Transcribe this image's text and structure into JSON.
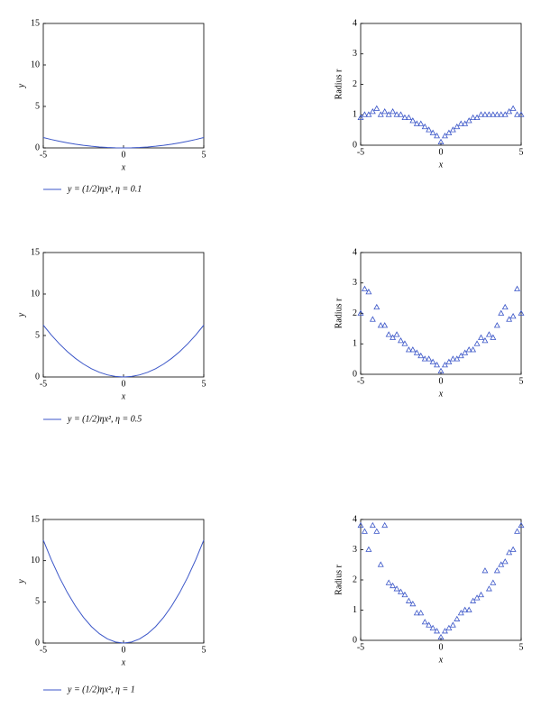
{
  "chart_data": [
    {
      "type": "line",
      "xlabel": "x",
      "ylabel": "y",
      "xlim": [
        -5,
        5
      ],
      "ylim": [
        0,
        15
      ],
      "xticks": [
        -5,
        0,
        5
      ],
      "yticks": [
        0,
        5,
        10,
        15
      ],
      "x": [
        -5,
        -4.5,
        -4,
        -3.5,
        -3,
        -2.5,
        -2,
        -1.5,
        -1,
        -0.5,
        0,
        0.5,
        1,
        1.5,
        2,
        2.5,
        3,
        3.5,
        4,
        4.5,
        5
      ],
      "series": [
        {
          "name": "y = (1/2)ηx², η = 0.1",
          "color": "#3b56c8",
          "values": [
            1.25,
            1.0125,
            0.8,
            0.6125,
            0.45,
            0.3125,
            0.2,
            0.1125,
            0.05,
            0.0125,
            0,
            0.0125,
            0.05,
            0.1125,
            0.2,
            0.3125,
            0.45,
            0.6125,
            0.8,
            1.0125,
            1.25
          ]
        }
      ]
    },
    {
      "type": "scatter",
      "xlabel": "x",
      "ylabel": "Radius r",
      "xlim": [
        -5,
        5
      ],
      "ylim": [
        0,
        4
      ],
      "xticks": [
        -5,
        0,
        5
      ],
      "yticks": [
        0,
        1,
        2,
        3,
        4
      ],
      "color": "#3b56c8",
      "marker": "triangle",
      "x": [
        -5,
        -4.75,
        -4.5,
        -4.25,
        -4,
        -3.75,
        -3.5,
        -3.25,
        -3,
        -2.75,
        -2.5,
        -2.25,
        -2,
        -1.75,
        -1.5,
        -1.25,
        -1,
        -0.75,
        -0.5,
        -0.25,
        0,
        0.25,
        0.5,
        0.75,
        1,
        1.25,
        1.5,
        1.75,
        2,
        2.25,
        2.5,
        2.75,
        3,
        3.25,
        3.5,
        3.75,
        4,
        4.25,
        4.5,
        4.75,
        5
      ],
      "values": [
        0.9,
        1.0,
        1.0,
        1.1,
        1.2,
        1.0,
        1.1,
        1.0,
        1.1,
        1.0,
        1.0,
        0.9,
        0.9,
        0.8,
        0.7,
        0.7,
        0.6,
        0.5,
        0.4,
        0.3,
        0.1,
        0.3,
        0.4,
        0.5,
        0.6,
        0.7,
        0.7,
        0.8,
        0.9,
        0.9,
        1.0,
        1.0,
        1.0,
        1.0,
        1.0,
        1.0,
        1.0,
        1.1,
        1.2,
        1.0,
        1.0
      ]
    },
    {
      "type": "line",
      "xlabel": "x",
      "ylabel": "y",
      "xlim": [
        -5,
        5
      ],
      "ylim": [
        0,
        15
      ],
      "xticks": [
        -5,
        0,
        5
      ],
      "yticks": [
        0,
        5,
        10,
        15
      ],
      "x": [
        -5,
        -4.5,
        -4,
        -3.5,
        -3,
        -2.5,
        -2,
        -1.5,
        -1,
        -0.5,
        0,
        0.5,
        1,
        1.5,
        2,
        2.5,
        3,
        3.5,
        4,
        4.5,
        5
      ],
      "series": [
        {
          "name": "y = (1/2)ηx², η = 0.5",
          "color": "#3b56c8",
          "values": [
            6.25,
            5.0625,
            4,
            3.0625,
            2.25,
            1.5625,
            1,
            0.5625,
            0.25,
            0.0625,
            0,
            0.0625,
            0.25,
            0.5625,
            1,
            1.5625,
            2.25,
            3.0625,
            4,
            5.0625,
            6.25
          ]
        }
      ]
    },
    {
      "type": "scatter",
      "xlabel": "x",
      "ylabel": "Radius r",
      "xlim": [
        -5,
        5
      ],
      "ylim": [
        0,
        4
      ],
      "xticks": [
        -5,
        0,
        5
      ],
      "yticks": [
        0,
        1,
        2,
        3,
        4
      ],
      "color": "#3b56c8",
      "marker": "triangle",
      "x": [
        -5,
        -4.75,
        -4.5,
        -4.25,
        -4,
        -3.75,
        -3.5,
        -3.25,
        -3,
        -2.75,
        -2.5,
        -2.25,
        -2,
        -1.75,
        -1.5,
        -1.25,
        -1,
        -0.75,
        -0.5,
        -0.25,
        0,
        0.25,
        0.5,
        0.75,
        1,
        1.25,
        1.5,
        1.75,
        2,
        2.25,
        2.5,
        2.75,
        3,
        3.25,
        3.5,
        3.75,
        4,
        4.25,
        4.5,
        4.75,
        5
      ],
      "values": [
        2.0,
        2.8,
        2.7,
        1.8,
        2.2,
        1.6,
        1.6,
        1.3,
        1.2,
        1.3,
        1.1,
        1.0,
        0.8,
        0.8,
        0.7,
        0.6,
        0.5,
        0.5,
        0.4,
        0.3,
        0.1,
        0.3,
        0.4,
        0.5,
        0.5,
        0.6,
        0.7,
        0.8,
        0.8,
        1.0,
        1.2,
        1.1,
        1.3,
        1.2,
        1.6,
        2.0,
        2.2,
        1.8,
        1.9,
        2.8,
        2.0
      ]
    },
    {
      "type": "line",
      "xlabel": "x",
      "ylabel": "y",
      "xlim": [
        -5,
        5
      ],
      "ylim": [
        0,
        15
      ],
      "xticks": [
        -5,
        0,
        5
      ],
      "yticks": [
        0,
        5,
        10,
        15
      ],
      "x": [
        -5,
        -4.5,
        -4,
        -3.5,
        -3,
        -2.5,
        -2,
        -1.5,
        -1,
        -0.5,
        0,
        0.5,
        1,
        1.5,
        2,
        2.5,
        3,
        3.5,
        4,
        4.5,
        5
      ],
      "series": [
        {
          "name": "y = (1/2)ηx², η = 1",
          "color": "#3b56c8",
          "values": [
            12.5,
            10.125,
            8,
            6.125,
            4.5,
            3.125,
            2,
            1.125,
            0.5,
            0.125,
            0,
            0.125,
            0.5,
            1.125,
            2,
            3.125,
            4.5,
            6.125,
            8,
            10.125,
            12.5
          ]
        }
      ]
    },
    {
      "type": "scatter",
      "xlabel": "x",
      "ylabel": "Radius r",
      "xlim": [
        -5,
        5
      ],
      "ylim": [
        0,
        4
      ],
      "xticks": [
        -5,
        0,
        5
      ],
      "yticks": [
        0,
        1,
        2,
        3,
        4
      ],
      "color": "#3b56c8",
      "marker": "triangle",
      "x": [
        -5,
        -4.75,
        -4.5,
        -4.25,
        -4,
        -3.75,
        -3.5,
        -3.25,
        -3,
        -2.75,
        -2.5,
        -2.25,
        -2,
        -1.75,
        -1.5,
        -1.25,
        -1,
        -0.75,
        -0.5,
        -0.25,
        0,
        0.25,
        0.5,
        0.75,
        1,
        1.25,
        1.5,
        1.75,
        2,
        2.25,
        2.5,
        2.75,
        3,
        3.25,
        3.5,
        3.75,
        4,
        4.25,
        4.5,
        4.75,
        5
      ],
      "values": [
        3.8,
        3.6,
        3.0,
        3.8,
        3.6,
        2.5,
        3.8,
        1.9,
        1.8,
        1.7,
        1.6,
        1.5,
        1.3,
        1.2,
        0.9,
        0.9,
        0.6,
        0.5,
        0.4,
        0.3,
        0.1,
        0.3,
        0.4,
        0.5,
        0.7,
        0.9,
        1.0,
        1.0,
        1.3,
        1.4,
        1.5,
        2.3,
        1.7,
        1.9,
        2.3,
        2.5,
        2.6,
        2.9,
        3.0,
        3.6,
        3.8
      ]
    }
  ]
}
